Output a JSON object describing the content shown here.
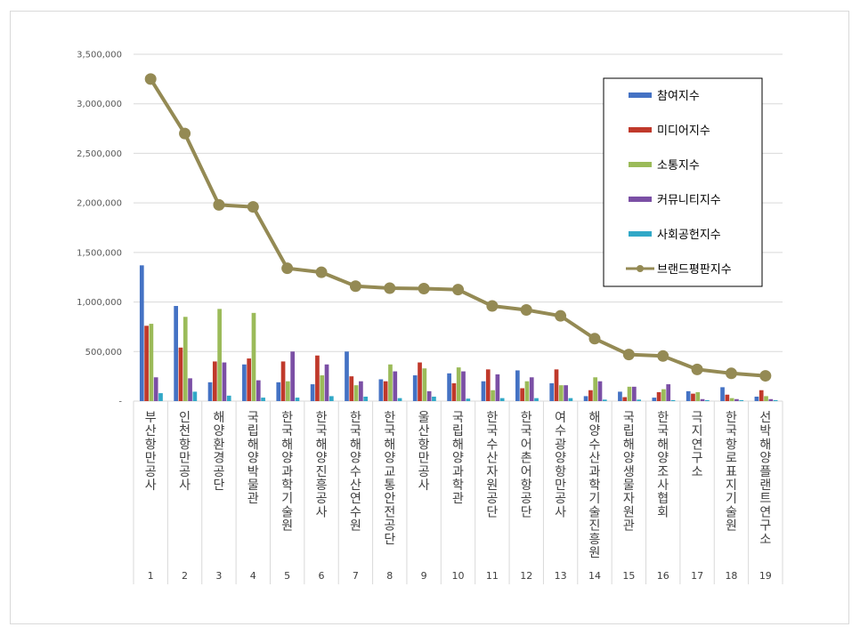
{
  "chart_data": {
    "type": "bar",
    "ylim": [
      0,
      3500000
    ],
    "yticks": [
      "-",
      "500,000",
      "1,000,000",
      "1,500,000",
      "2,000,000",
      "2,500,000",
      "3,000,000",
      "3,500,000"
    ],
    "categories": [
      "부산항만공사",
      "인천항만공사",
      "해양환경공단",
      "국립해양박물관",
      "한국해양과학기술원",
      "한국해양진흥공사",
      "한국해양수산연수원",
      "한국해양교통안전공단",
      "울산항만공사",
      "국립해양과학관",
      "한국수산자원공단",
      "한국어촌어항공단",
      "여수광양항만공사",
      "해양수산과학기술진흥원",
      "국립해양생물자원관",
      "한국해양조사협회",
      "극지연구소",
      "한국항로표지기술원",
      "선박해양플랜트연구소"
    ],
    "index_labels": [
      "1",
      "2",
      "3",
      "4",
      "5",
      "6",
      "7",
      "8",
      "9",
      "10",
      "11",
      "12",
      "13",
      "14",
      "15",
      "16",
      "17",
      "18",
      "19"
    ],
    "series": [
      {
        "name": "참여지수",
        "type": "bar",
        "color": "#4472C4",
        "values": [
          1370000,
          960000,
          190000,
          370000,
          190000,
          170000,
          500000,
          220000,
          260000,
          280000,
          200000,
          310000,
          180000,
          50000,
          95000,
          35000,
          100000,
          140000,
          45000
        ]
      },
      {
        "name": "미디어지수",
        "type": "bar",
        "color": "#C0392B",
        "values": [
          760000,
          540000,
          400000,
          430000,
          400000,
          460000,
          250000,
          200000,
          390000,
          180000,
          320000,
          130000,
          320000,
          110000,
          40000,
          90000,
          75000,
          65000,
          110000
        ]
      },
      {
        "name": "소통지수",
        "type": "bar",
        "color": "#9BBB59",
        "values": [
          780000,
          850000,
          930000,
          890000,
          200000,
          260000,
          160000,
          370000,
          330000,
          340000,
          110000,
          200000,
          160000,
          240000,
          145000,
          120000,
          90000,
          30000,
          50000
        ]
      },
      {
        "name": "커뮤니티지수",
        "type": "bar",
        "color": "#7B4FA5",
        "values": [
          240000,
          230000,
          390000,
          210000,
          500000,
          370000,
          200000,
          300000,
          100000,
          300000,
          270000,
          240000,
          160000,
          200000,
          145000,
          170000,
          20000,
          20000,
          20000
        ]
      },
      {
        "name": "사회공헌지수",
        "type": "bar",
        "color": "#31A8C7",
        "values": [
          80000,
          95000,
          55000,
          35000,
          35000,
          50000,
          45000,
          30000,
          45000,
          25000,
          30000,
          30000,
          30000,
          15000,
          15000,
          10000,
          10000,
          10000,
          10000
        ]
      },
      {
        "name": "브랜드평판지수",
        "type": "line",
        "color": "#948A54",
        "values": [
          3250000,
          2700000,
          1980000,
          1960000,
          1340000,
          1300000,
          1160000,
          1140000,
          1135000,
          1125000,
          960000,
          920000,
          860000,
          630000,
          470000,
          455000,
          320000,
          280000,
          255000
        ]
      }
    ]
  }
}
